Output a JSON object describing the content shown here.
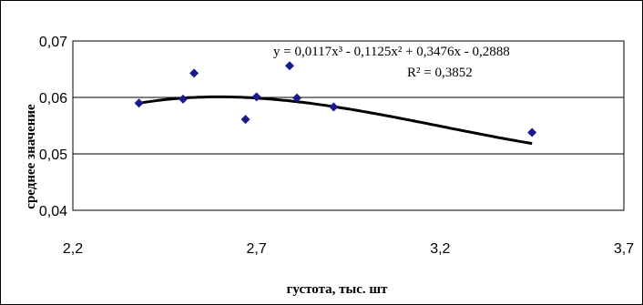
{
  "chart_data": {
    "type": "scatter",
    "xlabel": "густота, тыс. шт",
    "ylabel": "среднее значение",
    "xlim": [
      2.2,
      3.7
    ],
    "ylim": [
      0.04,
      0.07
    ],
    "x_ticks": [
      "2,2",
      "2,7",
      "3,2",
      "3,7"
    ],
    "y_ticks": [
      "0,04",
      "0,05",
      "0,06",
      "0,07"
    ],
    "grid": "horizontal",
    "series": [
      {
        "x": [
          2.38,
          2.5,
          2.53,
          2.67,
          2.7,
          2.79,
          2.81,
          2.91,
          3.45
        ],
        "y": [
          0.059,
          0.0597,
          0.0643,
          0.0561,
          0.0601,
          0.0656,
          0.0599,
          0.0583,
          0.0538
        ],
        "color": "#1a1a8c"
      }
    ],
    "trendline": {
      "type": "polynomial",
      "coefficients": [
        0.0117,
        -0.1125,
        0.3476,
        -0.2888
      ],
      "equation": "y = 0,0117x³ - 0,1125x² + 0,3476x - 0,2888",
      "r_squared_text": "R² = 0,3852",
      "x_range": [
        2.38,
        3.45
      ],
      "color": "#000000"
    }
  }
}
